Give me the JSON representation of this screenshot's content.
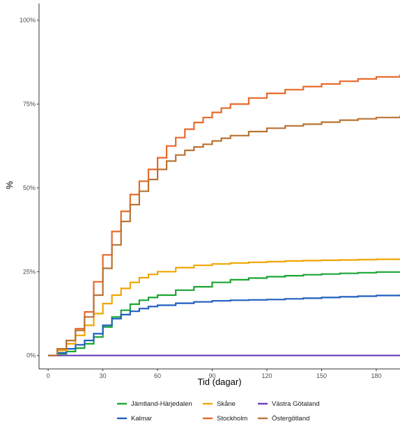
{
  "chart_data": {
    "type": "line",
    "step": true,
    "title": "",
    "xlabel": "Tid (dagar)",
    "ylabel": "%",
    "xlim": [
      -5,
      193
    ],
    "ylim": [
      -4,
      105
    ],
    "x_ticks": [
      0,
      30,
      60,
      90,
      120,
      150,
      180
    ],
    "x_tick_labels": [
      "0",
      "30",
      "60",
      "90",
      "120",
      "150",
      "180"
    ],
    "y_ticks": [
      0,
      25,
      50,
      75,
      100
    ],
    "y_tick_labels": [
      "0%",
      "25%",
      "50%",
      "75%",
      "100%"
    ],
    "grid": false,
    "legend_position": "bottom",
    "series": [
      {
        "name": "Jämtland-Härjedalen",
        "color": "#1aa532",
        "x": [
          0,
          5,
          10,
          15,
          20,
          25,
          30,
          35,
          40,
          45,
          50,
          55,
          60,
          70,
          80,
          90,
          100,
          110,
          120,
          130,
          140,
          150,
          160,
          170,
          180,
          193
        ],
        "y": [
          0,
          0.5,
          1.2,
          2.2,
          3.5,
          5.5,
          8.5,
          11.5,
          13.5,
          15.3,
          16.5,
          17.3,
          18,
          19.5,
          20.5,
          21.8,
          22.6,
          23.1,
          23.5,
          23.8,
          24.1,
          24.3,
          24.5,
          24.7,
          24.9,
          25.1
        ]
      },
      {
        "name": "Kalmar",
        "color": "#1f5fbf",
        "x": [
          0,
          5,
          10,
          15,
          20,
          25,
          30,
          35,
          40,
          45,
          50,
          55,
          60,
          70,
          80,
          90,
          100,
          110,
          120,
          130,
          140,
          150,
          160,
          170,
          180,
          193
        ],
        "y": [
          0,
          0.8,
          2,
          3.2,
          4.5,
          6.5,
          9,
          11,
          12.2,
          13.2,
          14,
          14.6,
          15,
          15.6,
          16,
          16.3,
          16.5,
          16.6,
          16.7,
          16.9,
          17.1,
          17.3,
          17.5,
          17.7,
          17.9,
          18.2
        ]
      },
      {
        "name": "Skåne",
        "color": "#f0a500",
        "x": [
          0,
          5,
          10,
          15,
          20,
          25,
          30,
          35,
          40,
          45,
          50,
          55,
          60,
          70,
          80,
          90,
          100,
          110,
          120,
          130,
          140,
          150,
          160,
          170,
          180,
          193
        ],
        "y": [
          0,
          1.5,
          3.5,
          6,
          9,
          12.5,
          15.5,
          18,
          20,
          21.8,
          23.2,
          24.2,
          25,
          26.2,
          26.9,
          27.3,
          27.6,
          27.8,
          28,
          28.2,
          28.3,
          28.4,
          28.5,
          28.6,
          28.7,
          29
        ]
      },
      {
        "name": "Stockholm",
        "color": "#e8682a",
        "x": [
          0,
          5,
          10,
          15,
          20,
          25,
          30,
          35,
          40,
          45,
          50,
          55,
          60,
          65,
          70,
          75,
          80,
          85,
          90,
          95,
          100,
          110,
          120,
          130,
          140,
          150,
          160,
          170,
          180,
          193
        ],
        "y": [
          0,
          2,
          4.5,
          8,
          13,
          22,
          30,
          37,
          43,
          48,
          52,
          55.5,
          59,
          62.5,
          65,
          67.5,
          69.5,
          71,
          72.5,
          73.8,
          75,
          76.8,
          78.2,
          79.3,
          80.2,
          81,
          81.8,
          82.5,
          83.1,
          83.8
        ]
      },
      {
        "name": "Västra Götaland",
        "color": "#6a3dbd",
        "x": [
          0,
          193
        ],
        "y": [
          0,
          0
        ]
      },
      {
        "name": "Östergötland",
        "color": "#b87333",
        "x": [
          0,
          5,
          10,
          15,
          20,
          25,
          30,
          35,
          40,
          45,
          50,
          55,
          60,
          65,
          70,
          75,
          80,
          85,
          90,
          95,
          100,
          110,
          120,
          130,
          140,
          150,
          160,
          170,
          180,
          193
        ],
        "y": [
          0,
          2,
          4.5,
          7.5,
          11.5,
          18,
          26,
          33,
          40,
          45,
          49,
          52.5,
          55.5,
          58,
          59.8,
          61.2,
          62.2,
          63,
          64,
          64.8,
          65.6,
          66.8,
          67.8,
          68.5,
          69,
          69.6,
          70.2,
          70.6,
          71,
          71.5
        ]
      }
    ],
    "legend": {
      "rows": [
        [
          "Jämtland-Härjedalen",
          "Skåne",
          "Västra Götaland"
        ],
        [
          "Kalmar",
          "Stockholm",
          "Östergötland"
        ]
      ]
    }
  }
}
